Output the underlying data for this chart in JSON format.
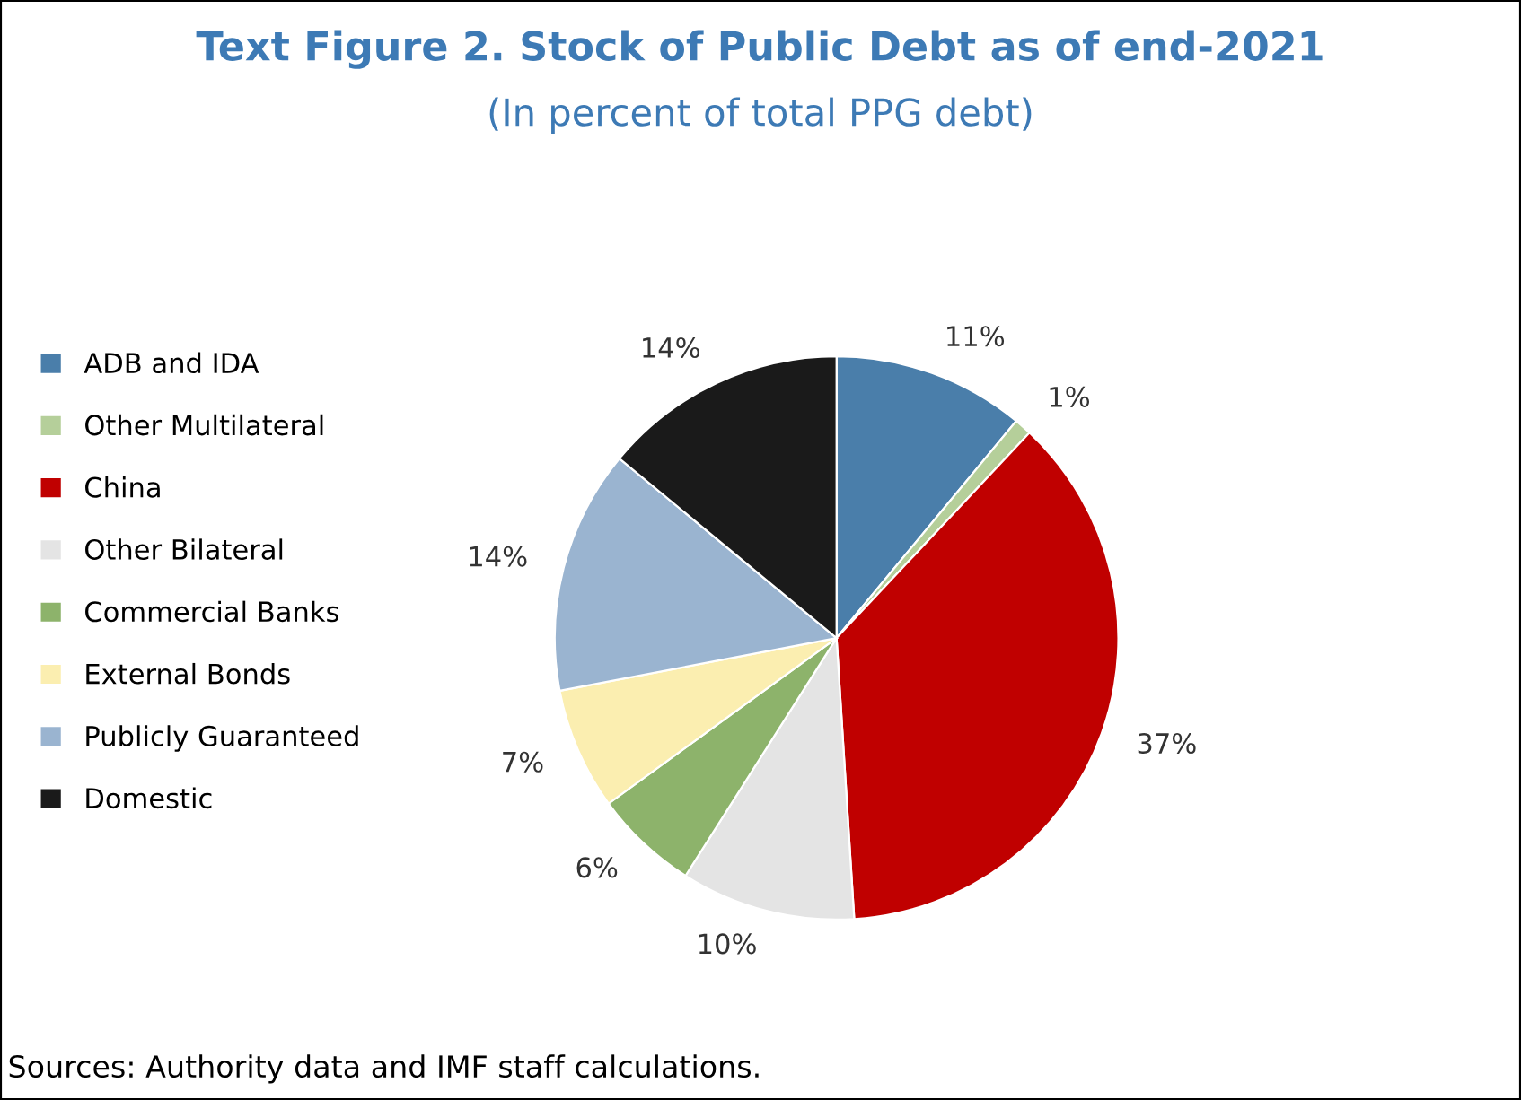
{
  "chart_data": {
    "type": "pie",
    "title": "Text Figure 2. Stock of Public Debt as of end-2021",
    "subtitle": "(In percent of total PPG debt)",
    "categories": [
      "ADB and IDA",
      "Other Multilateral",
      "China",
      "Other Bilateral",
      "Commercial Banks",
      "External Bonds",
      "Publicly Guaranteed",
      "Domestic"
    ],
    "values": [
      11,
      1,
      37,
      10,
      6,
      7,
      14,
      14
    ],
    "value_labels": [
      "11%",
      "1%",
      "37%",
      "10%",
      "6%",
      "7%",
      "14%",
      "14%"
    ],
    "colors": [
      "#4a7eaa",
      "#b5cf9a",
      "#c00000",
      "#e4e4e4",
      "#8db36b",
      "#fbeeb0",
      "#9ab4d0",
      "#1a1a1a"
    ],
    "legend": "left",
    "annotations": [
      "Sources: Authority data and IMF staff calculations."
    ]
  }
}
